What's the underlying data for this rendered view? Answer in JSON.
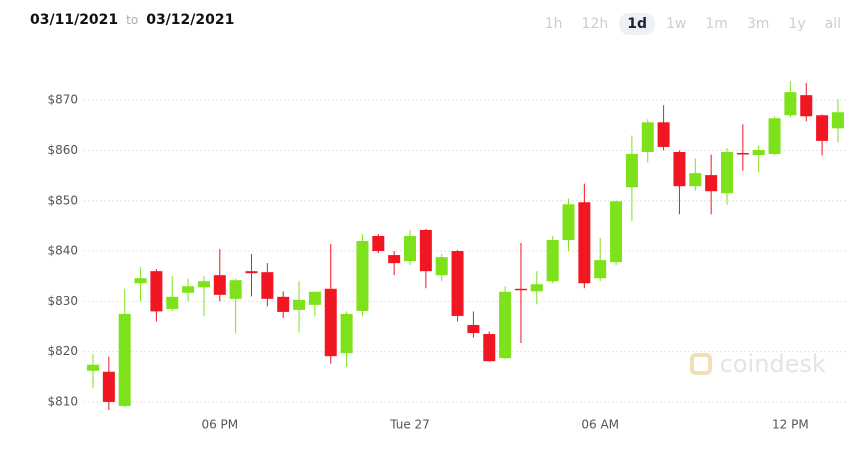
{
  "header": {
    "from": "03/11/2021",
    "to": "to",
    "until": "03/12/2021",
    "ranges": [
      "1h",
      "12h",
      "1d",
      "1w",
      "1m",
      "3m",
      "1y",
      "all"
    ],
    "selected": "1d"
  },
  "watermark": "coindesk",
  "chart_data": {
    "type": "candlestick",
    "categories": [
      null,
      null,
      null,
      null,
      null,
      null,
      null,
      null,
      "06 PM",
      null,
      null,
      null,
      null,
      null,
      null,
      null,
      null,
      null,
      null,
      null,
      "Tue 27",
      null,
      null,
      null,
      null,
      null,
      null,
      null,
      null,
      null,
      null,
      null,
      "06 AM",
      null,
      null,
      null,
      null,
      null,
      null,
      null,
      null,
      null,
      null,
      null,
      "12 PM",
      null,
      null,
      null
    ],
    "open": [
      816.2,
      816,
      809.2,
      833.6,
      836,
      828.5,
      831.7,
      832.8,
      835.2,
      830.5,
      836,
      835.8,
      830.9,
      828.3,
      829.3,
      832.5,
      819.7,
      828.1,
      843,
      839.2,
      838,
      844.2,
      835.2,
      840,
      825.3,
      823.5,
      818.7,
      832.5,
      832,
      834,
      842.2,
      849.7,
      834.6,
      837.8,
      852.7,
      859.7,
      865.6,
      859.7,
      852.9,
      855.1,
      851.5,
      859.5,
      859.1,
      859.3,
      867,
      871,
      867,
      864.4
    ],
    "high": [
      819.5,
      819,
      832.5,
      836.8,
      836.4,
      835,
      834.5,
      835,
      840.4,
      834.5,
      839.4,
      837.6,
      832,
      834,
      832,
      841.4,
      828,
      843.4,
      843.4,
      840,
      844.2,
      844.4,
      839.4,
      840.2,
      828,
      824,
      833,
      841.6,
      836,
      843,
      850.4,
      853.4,
      842.6,
      850,
      863,
      866.2,
      869,
      860,
      858.4,
      859.2,
      860.5,
      865.2,
      861,
      866.8,
      873.8,
      873.4,
      867.2,
      870.2
    ],
    "low": [
      812.8,
      808.4,
      809,
      830,
      826,
      828,
      830,
      827,
      830,
      823.6,
      831,
      829,
      826.7,
      823.8,
      827,
      817.6,
      817,
      827,
      839.6,
      835.2,
      837.2,
      832.6,
      834,
      826,
      822.8,
      818,
      818.5,
      821.7,
      829.4,
      833.6,
      840,
      832.6,
      834,
      837.2,
      846,
      857.6,
      860,
      847.3,
      852,
      847.3,
      849.2,
      856,
      855.6,
      859,
      866.6,
      865.8,
      859,
      861.6
    ],
    "close": [
      817.4,
      810,
      827.5,
      834.6,
      828,
      830.9,
      833,
      834,
      831.3,
      834.2,
      835.6,
      830.5,
      827.9,
      830.3,
      831.9,
      819.1,
      827.5,
      842,
      840,
      837.6,
      843,
      836,
      838.8,
      827.1,
      823.7,
      818.1,
      831.9,
      832.3,
      833.4,
      842.2,
      849.3,
      833.6,
      838.2,
      849.9,
      859.3,
      865.6,
      860.7,
      852.9,
      855.5,
      851.9,
      859.7,
      859.3,
      860.1,
      866.4,
      871.6,
      866.8,
      861.9,
      867.6
    ],
    "up_color": "#7ee21b",
    "down_color": "#f01622",
    "ylim": [
      808,
      876
    ],
    "yticks": [
      {
        "value": 810,
        "label": "$810"
      },
      {
        "value": 820,
        "label": "$820"
      },
      {
        "value": 830,
        "label": "$830"
      },
      {
        "value": 840,
        "label": "$840"
      },
      {
        "value": 850,
        "label": "$850"
      },
      {
        "value": 860,
        "label": "$860"
      },
      {
        "value": 870,
        "label": "$870"
      }
    ],
    "grid": true
  }
}
